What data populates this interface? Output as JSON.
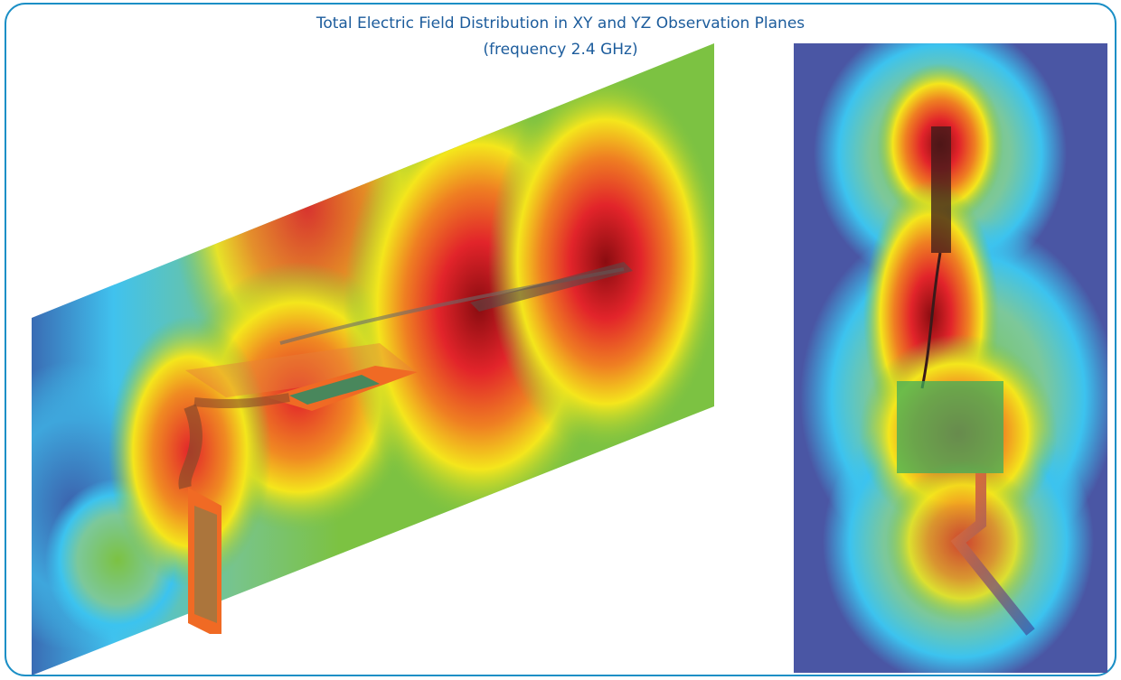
{
  "header": {
    "title": "Total Electric Field Distribution in XY and YZ Observation Planes",
    "subtitle": "(frequency 2.4 GHz)"
  }
}
